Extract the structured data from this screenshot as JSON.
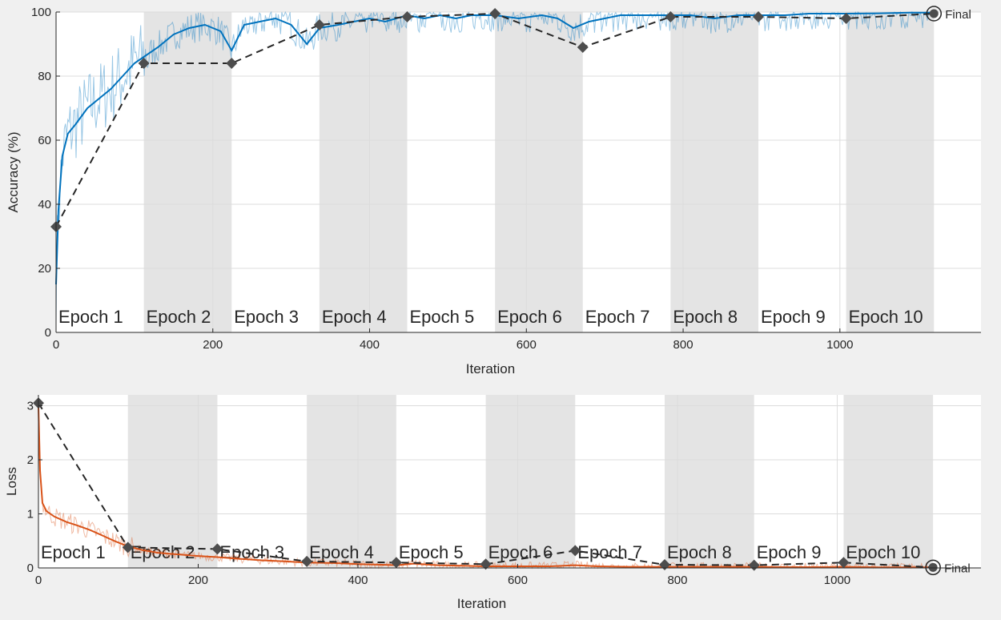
{
  "chart_data": [
    {
      "type": "line",
      "xlabel": "Iteration",
      "ylabel": "Accuracy (%)",
      "xlim": [
        0,
        1180
      ],
      "ylim": [
        0,
        100
      ],
      "xticks": [
        0,
        200,
        400,
        600,
        800,
        1000
      ],
      "yticks": [
        0,
        20,
        40,
        60,
        80,
        100
      ],
      "epoch_labels": [
        "Epoch 1",
        "Epoch 2",
        "Epoch 3",
        "Epoch 4",
        "Epoch 5",
        "Epoch 6",
        "Epoch 7",
        "Epoch 8",
        "Epoch 9",
        "Epoch 10"
      ],
      "epoch_boundaries": [
        0,
        112,
        224,
        336,
        448,
        560,
        672,
        784,
        896,
        1008,
        1120
      ],
      "shaded_epochs": [
        2,
        4,
        6,
        8,
        10
      ],
      "final_label": "Final",
      "series": [
        {
          "role": "training-smoothed",
          "color": "#0072bd",
          "x": [
            0,
            3,
            8,
            15,
            25,
            40,
            55,
            70,
            85,
            100,
            112,
            130,
            150,
            170,
            190,
            210,
            224,
            240,
            260,
            280,
            300,
            320,
            336,
            360,
            380,
            400,
            420,
            448,
            470,
            490,
            510,
            530,
            560,
            590,
            620,
            640,
            660,
            680,
            700,
            720,
            750,
            784,
            810,
            840,
            870,
            896,
            930,
            960,
            1008,
            1050,
            1090,
            1120
          ],
          "values": [
            15,
            38,
            55,
            62,
            65,
            70,
            73,
            76,
            80,
            84,
            86,
            89,
            93,
            95,
            96,
            94,
            88,
            96,
            97,
            98,
            96,
            90,
            95,
            96,
            97,
            98,
            97,
            99,
            98,
            99,
            98,
            99,
            99,
            98,
            99,
            98,
            95,
            97,
            98,
            99,
            99,
            99,
            99,
            98,
            99,
            99,
            99,
            99.5,
            99.5,
            99.6,
            99.8,
            99.8
          ]
        },
        {
          "role": "validation",
          "color": "#262626",
          "x": [
            0,
            112,
            224,
            336,
            448,
            560,
            672,
            784,
            896,
            1008,
            1120
          ],
          "values": [
            33,
            84,
            84,
            96,
            98.5,
            99.5,
            89,
            98.5,
            98.5,
            98,
            99.5
          ]
        }
      ]
    },
    {
      "type": "line",
      "xlabel": "Iteration",
      "ylabel": "Loss",
      "xlim": [
        0,
        1180
      ],
      "ylim": [
        0,
        3.2
      ],
      "xticks": [
        0,
        200,
        400,
        600,
        800,
        1000
      ],
      "yticks": [
        0,
        1,
        2,
        3
      ],
      "epoch_labels": [
        "Epoch 1",
        "Epoch 2",
        "Epoch 3",
        "Epoch 4",
        "Epoch 5",
        "Epoch 6",
        "Epoch 7",
        "Epoch 8",
        "Epoch 9",
        "Epoch 10"
      ],
      "epoch_boundaries": [
        0,
        112,
        224,
        336,
        448,
        560,
        672,
        784,
        896,
        1008,
        1120
      ],
      "shaded_epochs": [
        2,
        4,
        6,
        8,
        10
      ],
      "final_label": "Final",
      "series": [
        {
          "role": "training-smoothed",
          "color": "#d95319",
          "x": [
            0,
            2,
            5,
            10,
            20,
            35,
            50,
            65,
            80,
            95,
            112,
            130,
            150,
            175,
            200,
            224,
            250,
            280,
            310,
            336,
            370,
            400,
            430,
            448,
            470,
            500,
            530,
            560,
            600,
            640,
            672,
            700,
            740,
            784,
            830,
            870,
            896,
            940,
            980,
            1008,
            1050,
            1090,
            1120
          ],
          "values": [
            3.0,
            1.8,
            1.2,
            1.05,
            0.95,
            0.85,
            0.78,
            0.7,
            0.6,
            0.5,
            0.4,
            0.33,
            0.28,
            0.25,
            0.22,
            0.2,
            0.17,
            0.14,
            0.12,
            0.1,
            0.09,
            0.07,
            0.06,
            0.05,
            0.08,
            0.05,
            0.04,
            0.03,
            0.03,
            0.03,
            0.05,
            0.03,
            0.02,
            0.02,
            0.02,
            0.02,
            0.02,
            0.015,
            0.015,
            0.02,
            0.01,
            0.01,
            0.01
          ]
        },
        {
          "role": "validation",
          "color": "#262626",
          "x": [
            0,
            112,
            224,
            336,
            448,
            560,
            672,
            784,
            896,
            1008,
            1120
          ],
          "values": [
            3.05,
            0.38,
            0.35,
            0.12,
            0.1,
            0.07,
            0.32,
            0.06,
            0.05,
            0.1,
            0.01
          ]
        }
      ]
    }
  ]
}
